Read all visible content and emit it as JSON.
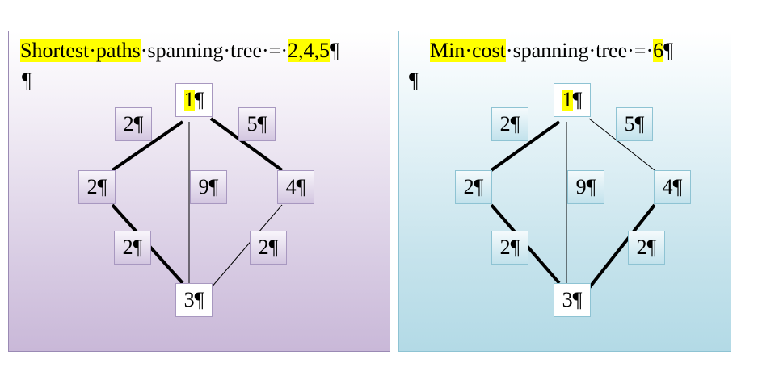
{
  "left_panel": {
    "title_highlight": "Shortest",
    "title_rest_1": "paths",
    "title_rest_2": "spanning",
    "title_rest_3": "tree",
    "title_eq": "=",
    "title_value": "2,4,5",
    "pilcrow": "¶",
    "nodes": {
      "n1": "1",
      "n2": "2",
      "n3": "3",
      "n4": "4"
    },
    "weights": {
      "w12": "2",
      "w14": "5",
      "w13": "9",
      "w23": "2",
      "w43": "2"
    }
  },
  "right_panel": {
    "title_highlight": "Min",
    "title_rest_1": "cost",
    "title_rest_2": "spanning",
    "title_rest_3": "tree",
    "title_eq": "=",
    "title_value": "6",
    "pilcrow": "¶",
    "nodes": {
      "n1": "1",
      "n2": "2",
      "n3": "3",
      "n4": "4"
    },
    "weights": {
      "w12": "2",
      "w14": "5",
      "w13": "9",
      "w23": "2",
      "w43": "2"
    }
  },
  "colors": {
    "highlight": "#ffff00",
    "left_border": "#9a8ab4",
    "right_border": "#8ec3d3"
  }
}
